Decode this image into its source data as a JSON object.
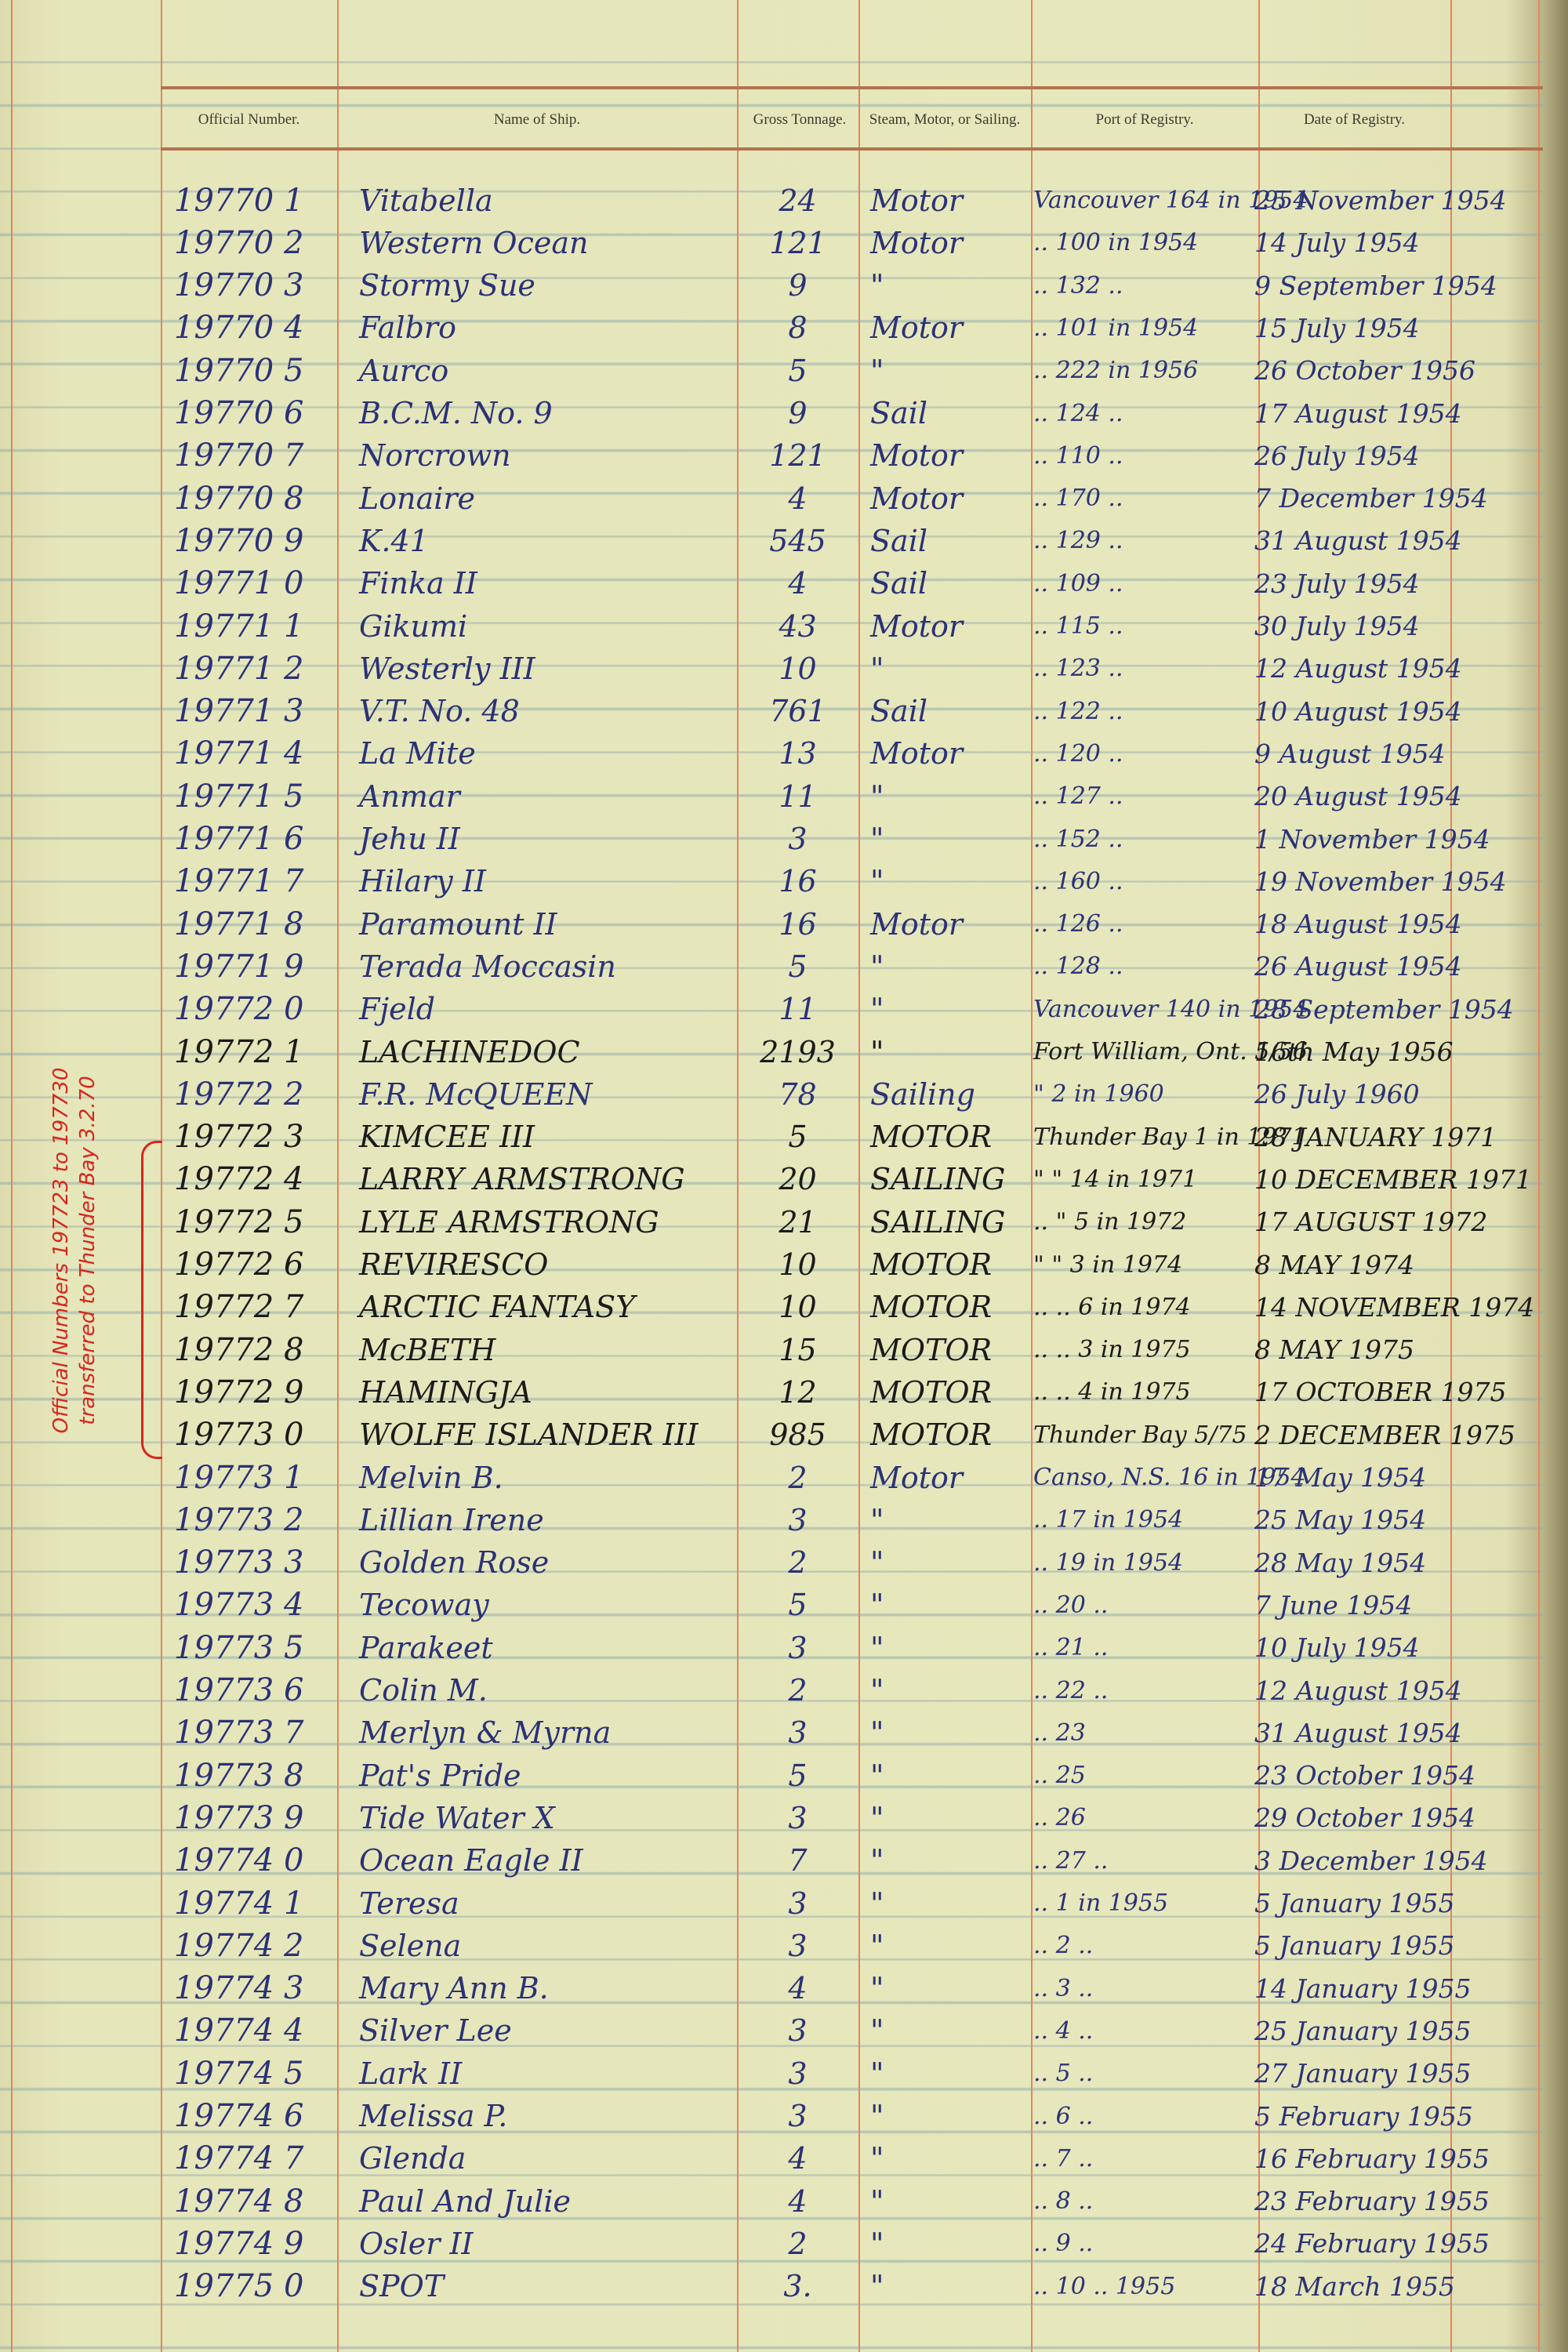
{
  "headers": {
    "official_number": "Official Number.",
    "name_of_ship": "Name of Ship.",
    "gross_tonnage": "Gross Tonnage.",
    "propulsion": "Steam, Motor, or Sailing.",
    "port_of_registry": "Port of Registry.",
    "date_of_registry": "Date of Registry."
  },
  "colors": {
    "blue_ink": "#2b3275",
    "black_ink": "#1b1b1b",
    "red_ink": "#d6261c",
    "rule": "#e0875a"
  },
  "margin_note": "Official Numbers 197723 to 197730 transferred to Thunder Bay 3.2.70",
  "rows": [
    {
      "num": "19770 1",
      "name": "Vitabella",
      "ton": "24",
      "type": "Motor",
      "port": "Vancouver 164 in 1954",
      "date": "25 November 1954",
      "ink": "blue"
    },
    {
      "num": "19770 2",
      "name": "Western Ocean",
      "ton": "121",
      "type": "Motor",
      "port": ".. 100 in 1954",
      "date": "14 July 1954",
      "ink": "blue"
    },
    {
      "num": "19770 3",
      "name": "Stormy Sue",
      "ton": "9",
      "type": "\"",
      "port": ".. 132 ..",
      "date": "9 September 1954",
      "ink": "blue"
    },
    {
      "num": "19770 4",
      "name": "Falbro",
      "ton": "8",
      "type": "Motor",
      "port": ".. 101 in 1954",
      "date": "15 July 1954",
      "ink": "blue"
    },
    {
      "num": "19770 5",
      "name": "Aurco",
      "ton": "5",
      "type": "\"",
      "port": ".. 222 in 1956",
      "date": "26 October 1956",
      "ink": "blue"
    },
    {
      "num": "19770 6",
      "name": "B.C.M. No. 9",
      "ton": "9",
      "type": "Sail",
      "port": ".. 124 ..",
      "date": "17 August 1954",
      "ink": "blue"
    },
    {
      "num": "19770 7",
      "name": "Norcrown",
      "ton": "121",
      "type": "Motor",
      "port": ".. 110 ..",
      "date": "26 July 1954",
      "ink": "blue"
    },
    {
      "num": "19770 8",
      "name": "Lonaire",
      "ton": "4",
      "type": "Motor",
      "port": ".. 170 ..",
      "date": "7 December 1954",
      "ink": "blue"
    },
    {
      "num": "19770 9",
      "name": "K.41",
      "ton": "545",
      "type": "Sail",
      "port": ".. 129 ..",
      "date": "31 August 1954",
      "ink": "blue"
    },
    {
      "num": "19771 0",
      "name": "Finka II",
      "ton": "4",
      "type": "Sail",
      "port": ".. 109 ..",
      "date": "23 July 1954",
      "ink": "blue"
    },
    {
      "num": "19771 1",
      "name": "Gikumi",
      "ton": "43",
      "type": "Motor",
      "port": ".. 115 ..",
      "date": "30 July 1954",
      "ink": "blue"
    },
    {
      "num": "19771 2",
      "name": "Westerly III",
      "ton": "10",
      "type": "\"",
      "port": ".. 123 ..",
      "date": "12 August 1954",
      "ink": "blue"
    },
    {
      "num": "19771 3",
      "name": "V.T. No. 48",
      "ton": "761",
      "type": "Sail",
      "port": ".. 122 ..",
      "date": "10 August 1954",
      "ink": "blue"
    },
    {
      "num": "19771 4",
      "name": "La Mite",
      "ton": "13",
      "type": "Motor",
      "port": ".. 120 ..",
      "date": "9 August 1954",
      "ink": "blue"
    },
    {
      "num": "19771 5",
      "name": "Anmar",
      "ton": "11",
      "type": "\"",
      "port": ".. 127 ..",
      "date": "20 August 1954",
      "ink": "blue"
    },
    {
      "num": "19771 6",
      "name": "Jehu II",
      "ton": "3",
      "type": "\"",
      "port": ".. 152 ..",
      "date": "1 November 1954",
      "ink": "blue"
    },
    {
      "num": "19771 7",
      "name": "Hilary II",
      "ton": "16",
      "type": "\"",
      "port": ".. 160 ..",
      "date": "19 November 1954",
      "ink": "blue"
    },
    {
      "num": "19771 8",
      "name": "Paramount II",
      "ton": "16",
      "type": "Motor",
      "port": ".. 126 ..",
      "date": "18 August 1954",
      "ink": "blue"
    },
    {
      "num": "19771 9",
      "name": "Terada Moccasin",
      "ton": "5",
      "type": "\"",
      "port": ".. 128 ..",
      "date": "26 August 1954",
      "ink": "blue"
    },
    {
      "num": "19772 0",
      "name": "Fjeld",
      "ton": "11",
      "type": "\"",
      "port": "Vancouver 140 in 1954",
      "date": "28 September 1954",
      "ink": "blue"
    },
    {
      "num": "19772 1",
      "name": "LACHINEDOC",
      "ton": "2193",
      "type": "\"",
      "port": "Fort William, Ont. 5/56",
      "date": "16th May 1956",
      "ink": "black"
    },
    {
      "num": "19772 2",
      "name": "F.R. McQUEEN",
      "ton": "78",
      "type": "Sailing",
      "port": "\"  2 in 1960",
      "date": "26 July 1960",
      "ink": "blue"
    },
    {
      "num": "19772 3",
      "name": "KIMCEE III",
      "ton": "5",
      "type": "MOTOR",
      "port": "Thunder Bay 1 in 1971",
      "date": "28 JANUARY 1971",
      "ink": "black"
    },
    {
      "num": "19772 4",
      "name": "LARRY ARMSTRONG",
      "ton": "20",
      "type": "SAILING",
      "port": "\" \" 14 in 1971",
      "date": "10 DECEMBER 1971",
      "ink": "black"
    },
    {
      "num": "19772 5",
      "name": "LYLE ARMSTRONG",
      "ton": "21",
      "type": "SAILING",
      "port": ".. \" 5 in 1972",
      "date": "17 AUGUST 1972",
      "ink": "black"
    },
    {
      "num": "19772 6",
      "name": "REVIRESCO",
      "ton": "10",
      "type": "MOTOR",
      "port": "\" \" 3 in 1974",
      "date": "8 MAY 1974",
      "ink": "black"
    },
    {
      "num": "19772 7",
      "name": "ARCTIC FANTASY",
      "ton": "10",
      "type": "MOTOR",
      "port": ".. .. 6 in 1974",
      "date": "14 NOVEMBER 1974",
      "ink": "black"
    },
    {
      "num": "19772 8",
      "name": "McBETH",
      "ton": "15",
      "type": "MOTOR",
      "port": ".. .. 3 in 1975",
      "date": "8 MAY 1975",
      "ink": "black"
    },
    {
      "num": "19772 9",
      "name": "HAMINGJA",
      "ton": "12",
      "type": "MOTOR",
      "port": ".. .. 4 in 1975",
      "date": "17 OCTOBER 1975",
      "ink": "black"
    },
    {
      "num": "19773 0",
      "name": "WOLFE ISLANDER III",
      "ton": "985",
      "type": "MOTOR",
      "port": "Thunder Bay 5/75",
      "date": "2 DECEMBER 1975",
      "ink": "black"
    },
    {
      "num": "19773 1",
      "name": "Melvin B.",
      "ton": "2",
      "type": "Motor",
      "port": "Canso, N.S. 16 in 1954",
      "date": "17 May 1954",
      "ink": "blue"
    },
    {
      "num": "19773 2",
      "name": "Lillian Irene",
      "ton": "3",
      "type": "\"",
      "port": ".. 17 in 1954",
      "date": "25 May 1954",
      "ink": "blue"
    },
    {
      "num": "19773 3",
      "name": "Golden Rose",
      "ton": "2",
      "type": "\"",
      "port": ".. 19 in 1954",
      "date": "28 May 1954",
      "ink": "blue"
    },
    {
      "num": "19773 4",
      "name": "Tecoway",
      "ton": "5",
      "type": "\"",
      "port": ".. 20 ..",
      "date": "7 June 1954",
      "ink": "blue"
    },
    {
      "num": "19773 5",
      "name": "Parakeet",
      "ton": "3",
      "type": "\"",
      "port": ".. 21 ..",
      "date": "10 July 1954",
      "ink": "blue"
    },
    {
      "num": "19773 6",
      "name": "Colin M.",
      "ton": "2",
      "type": "\"",
      "port": ".. 22 ..",
      "date": "12 August 1954",
      "ink": "blue"
    },
    {
      "num": "19773 7",
      "name": "Merlyn & Myrna",
      "ton": "3",
      "type": "\"",
      "port": ".. 23",
      "date": "31 August 1954",
      "ink": "blue"
    },
    {
      "num": "19773 8",
      "name": "Pat's Pride",
      "ton": "5",
      "type": "\"",
      "port": ".. 25",
      "date": "23 October 1954",
      "ink": "blue"
    },
    {
      "num": "19773 9",
      "name": "Tide Water X",
      "ton": "3",
      "type": "\"",
      "port": ".. 26",
      "date": "29 October 1954",
      "ink": "blue"
    },
    {
      "num": "19774 0",
      "name": "Ocean Eagle II",
      "ton": "7",
      "type": "\"",
      "port": ".. 27 ..",
      "date": "3 December 1954",
      "ink": "blue"
    },
    {
      "num": "19774 1",
      "name": "Teresa",
      "ton": "3",
      "type": "\"",
      "port": ".. 1 in 1955",
      "date": "5 January 1955",
      "ink": "blue"
    },
    {
      "num": "19774 2",
      "name": "Selena",
      "ton": "3",
      "type": "\"",
      "port": ".. 2 ..",
      "date": "5 January 1955",
      "ink": "blue"
    },
    {
      "num": "19774 3",
      "name": "Mary Ann B.",
      "ton": "4",
      "type": "\"",
      "port": ".. 3 ..",
      "date": "14 January 1955",
      "ink": "blue"
    },
    {
      "num": "19774 4",
      "name": "Silver Lee",
      "ton": "3",
      "type": "\"",
      "port": ".. 4 ..",
      "date": "25 January 1955",
      "ink": "blue"
    },
    {
      "num": "19774 5",
      "name": "Lark II",
      "ton": "3",
      "type": "\"",
      "port": ".. 5 ..",
      "date": "27 January 1955",
      "ink": "blue"
    },
    {
      "num": "19774 6",
      "name": "Melissa P.",
      "ton": "3",
      "type": "\"",
      "port": ".. 6 ..",
      "date": "5 February 1955",
      "ink": "blue"
    },
    {
      "num": "19774 7",
      "name": "Glenda",
      "ton": "4",
      "type": "\"",
      "port": ".. 7 ..",
      "date": "16 February 1955",
      "ink": "blue"
    },
    {
      "num": "19774 8",
      "name": "Paul And Julie",
      "ton": "4",
      "type": "\"",
      "port": ".. 8 ..",
      "date": "23 February 1955",
      "ink": "blue"
    },
    {
      "num": "19774 9",
      "name": "Osler II",
      "ton": "2",
      "type": "\"",
      "port": ".. 9 ..",
      "date": "24 February 1955",
      "ink": "blue"
    },
    {
      "num": "19775 0",
      "name": "SPOT",
      "ton": "3.",
      "type": "\"",
      "port": ".. 10 .. 1955",
      "date": "18 March 1955",
      "ink": "blue"
    }
  ]
}
